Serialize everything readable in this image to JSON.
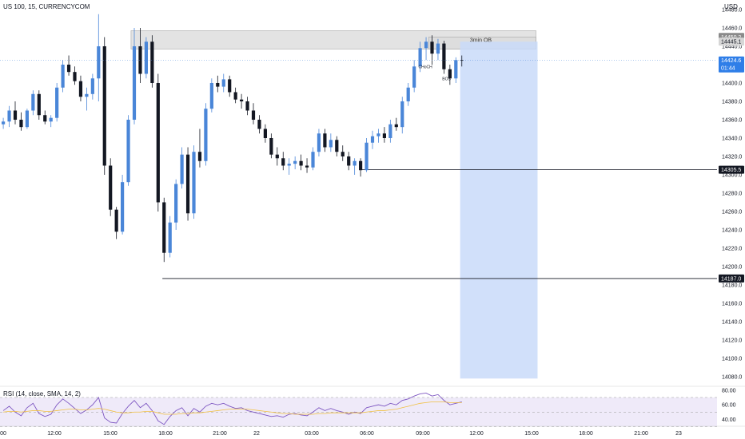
{
  "header": {
    "symbol_line": "US 100, 15, CURRENCYCOM",
    "currency": "USD"
  },
  "colors": {
    "up": "#4a86d8",
    "down": "#131722",
    "zone": "#d9d9d9",
    "projection": "#c9dbf9",
    "rsi_line": "#7e57c2",
    "rsi_ma": "#f0c040",
    "rsi_band": "#efeaf9"
  },
  "chart_data": [
    {
      "type": "candlestick",
      "y_axis": {
        "ticks": [
          14480,
          14460,
          14440,
          14420,
          14400,
          14380,
          14360,
          14340,
          14320,
          14300,
          14280,
          14260,
          14240,
          14220,
          14200,
          14180,
          14160,
          14140,
          14120,
          14100,
          14080
        ],
        "range": [
          14073,
          14480
        ]
      },
      "x_axis": {
        "ticks": [
          "00",
          "12:00",
          "15:00",
          "18:00",
          "21:00",
          "22",
          "03:00",
          "06:00",
          "09:00",
          "12:00",
          "15:00",
          "18:00",
          "21:00",
          "23"
        ]
      },
      "price_tags": [
        {
          "label": "14450.2",
          "value": 14450.2,
          "style": "gray"
        },
        {
          "label": "14445.1",
          "value": 14445.1,
          "style": "light"
        },
        {
          "label": "14424.6",
          "value": 14424.6,
          "style": "blue",
          "sub": "01:44"
        },
        {
          "label": "14305.5",
          "value": 14305.5,
          "style": "dark"
        },
        {
          "label": "14187.0",
          "value": 14187.0,
          "style": "dark"
        }
      ],
      "horizontal_lines": [
        {
          "value": 14305.5,
          "from_bar": 60
        },
        {
          "value": 14187.0,
          "from_bar": 27
        }
      ],
      "zones": [
        {
          "from_bar": 22,
          "to_bar": 90,
          "high": 14457,
          "low": 14437,
          "color": "zone"
        },
        {
          "from_bar": 72,
          "to_bar": 90,
          "high": 14450.2,
          "low": 14437,
          "color": "zone",
          "label": "3min OB"
        }
      ],
      "projection": {
        "from_bar": 77,
        "to_bar": 90,
        "high": 14445.1,
        "low": 14078
      },
      "annotations": [
        {
          "text": "CHoCH",
          "bar": 70,
          "value": 14416
        },
        {
          "text": "BOS",
          "bar": 74,
          "value": 14403
        }
      ],
      "candles": [
        [
          14355,
          14362,
          14350,
          14358
        ],
        [
          14358,
          14375,
          14352,
          14370
        ],
        [
          14370,
          14380,
          14355,
          14360
        ],
        [
          14360,
          14368,
          14348,
          14352
        ],
        [
          14352,
          14372,
          14350,
          14370
        ],
        [
          14370,
          14392,
          14365,
          14388
        ],
        [
          14388,
          14392,
          14360,
          14365
        ],
        [
          14365,
          14370,
          14355,
          14358
        ],
        [
          14358,
          14365,
          14352,
          14362
        ],
        [
          14362,
          14400,
          14358,
          14395
        ],
        [
          14395,
          14425,
          14390,
          14420
        ],
        [
          14420,
          14430,
          14408,
          14412
        ],
        [
          14412,
          14418,
          14398,
          14402
        ],
        [
          14402,
          14408,
          14380,
          14385
        ],
        [
          14385,
          14395,
          14370,
          14388
        ],
        [
          14388,
          14410,
          14382,
          14405
        ],
        [
          14405,
          14475,
          14380,
          14440
        ],
        [
          14440,
          14450,
          14300,
          14310
        ],
        [
          14310,
          14318,
          14255,
          14262
        ],
        [
          14262,
          14265,
          14230,
          14238
        ],
        [
          14238,
          14300,
          14235,
          14292
        ],
        [
          14292,
          14365,
          14288,
          14360
        ],
        [
          14360,
          14460,
          14355,
          14440
        ],
        [
          14440,
          14460,
          14400,
          14410
        ],
        [
          14410,
          14450,
          14405,
          14445
        ],
        [
          14445,
          14452,
          14395,
          14400
        ],
        [
          14400,
          14410,
          14260,
          14270
        ],
        [
          14270,
          14275,
          14205,
          14215
        ],
        [
          14215,
          14255,
          14210,
          14248
        ],
        [
          14248,
          14295,
          14240,
          14290
        ],
        [
          14290,
          14330,
          14285,
          14322
        ],
        [
          14322,
          14330,
          14250,
          14258
        ],
        [
          14258,
          14332,
          14252,
          14325
        ],
        [
          14325,
          14350,
          14308,
          14315
        ],
        [
          14315,
          14378,
          14310,
          14372
        ],
        [
          14372,
          14405,
          14368,
          14400
        ],
        [
          14400,
          14408,
          14390,
          14396
        ],
        [
          14396,
          14410,
          14390,
          14404
        ],
        [
          14404,
          14408,
          14385,
          14390
        ],
        [
          14390,
          14395,
          14378,
          14382
        ],
        [
          14382,
          14388,
          14372,
          14380
        ],
        [
          14380,
          14385,
          14365,
          14370
        ],
        [
          14370,
          14378,
          14355,
          14360
        ],
        [
          14360,
          14365,
          14345,
          14350
        ],
        [
          14350,
          14355,
          14335,
          14340
        ],
        [
          14340,
          14345,
          14318,
          14322
        ],
        [
          14322,
          14330,
          14310,
          14318
        ],
        [
          14318,
          14325,
          14305,
          14310
        ],
        [
          14310,
          14318,
          14300,
          14312
        ],
        [
          14312,
          14320,
          14306,
          14315
        ],
        [
          14315,
          14322,
          14305,
          14310
        ],
        [
          14310,
          14318,
          14302,
          14308
        ],
        [
          14308,
          14330,
          14305,
          14325
        ],
        [
          14325,
          14350,
          14320,
          14345
        ],
        [
          14345,
          14350,
          14325,
          14330
        ],
        [
          14330,
          14345,
          14325,
          14338
        ],
        [
          14338,
          14342,
          14320,
          14325
        ],
        [
          14325,
          14332,
          14315,
          14320
        ],
        [
          14320,
          14325,
          14305,
          14310
        ],
        [
          14310,
          14318,
          14300,
          14315
        ],
        [
          14315,
          14318,
          14298,
          14305
        ],
        [
          14305,
          14340,
          14303,
          14335
        ],
        [
          14335,
          14348,
          14328,
          14342
        ],
        [
          14342,
          14350,
          14335,
          14345
        ],
        [
          14345,
          14352,
          14335,
          14340
        ],
        [
          14340,
          14360,
          14335,
          14355
        ],
        [
          14355,
          14362,
          14348,
          14352
        ],
        [
          14352,
          14385,
          14345,
          14380
        ],
        [
          14380,
          14400,
          14375,
          14395
        ],
        [
          14395,
          14425,
          14390,
          14418
        ],
        [
          14418,
          14445,
          14412,
          14438
        ],
        [
          14438,
          14450,
          14425,
          14445
        ],
        [
          14445,
          14452,
          14420,
          14432
        ],
        [
          14432,
          14448,
          14425,
          14443
        ],
        [
          14443,
          14446,
          14410,
          14415
        ],
        [
          14415,
          14420,
          14398,
          14405
        ],
        [
          14405,
          14428,
          14400,
          14425
        ],
        [
          14425,
          14430,
          14418,
          14424.6
        ]
      ],
      "rsi": {
        "label": "RSI (14, close, SMA, 14, 2)",
        "ticks": [
          80,
          60,
          40
        ],
        "range": [
          35,
          82
        ],
        "band": [
          30,
          70
        ],
        "values": [
          52,
          58,
          50,
          45,
          56,
          62,
          48,
          44,
          47,
          60,
          68,
          62,
          55,
          48,
          53,
          60,
          70,
          42,
          36,
          35,
          48,
          58,
          66,
          56,
          62,
          52,
          38,
          33,
          44,
          52,
          56,
          45,
          55,
          50,
          58,
          62,
          60,
          62,
          58,
          55,
          56,
          52,
          50,
          48,
          46,
          44,
          45,
          43,
          47,
          48,
          46,
          45,
          50,
          56,
          52,
          55,
          52,
          50,
          47,
          50,
          48,
          56,
          58,
          60,
          58,
          62,
          60,
          66,
          68,
          72,
          75,
          76,
          72,
          74,
          66,
          60,
          62,
          64
        ],
        "ma_values": [
          50,
          51,
          51,
          50,
          51,
          52,
          52,
          51,
          51,
          52,
          53,
          54,
          54,
          53,
          53,
          54,
          55,
          54,
          52,
          50,
          49,
          49,
          50,
          50,
          51,
          51,
          49,
          47,
          47,
          47,
          48,
          48,
          49,
          49,
          50,
          51,
          52,
          53,
          54,
          54,
          54,
          54,
          53,
          52,
          51,
          50,
          49,
          48,
          48,
          47,
          47,
          47,
          47,
          48,
          48,
          49,
          49,
          49,
          49,
          49,
          49,
          50,
          51,
          52,
          52,
          53,
          54,
          56,
          58,
          60,
          62,
          63,
          64,
          64,
          64,
          63,
          63,
          63
        ]
      }
    }
  ]
}
